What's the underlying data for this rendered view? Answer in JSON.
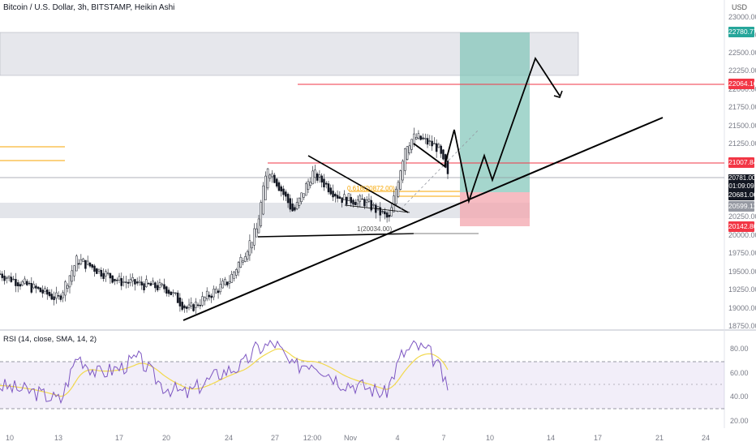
{
  "header": {
    "title": "Bitcoin / U.S. Dollar, 3h, BITSTAMP, Heikin Ashi",
    "currency": "USD"
  },
  "price_axis": {
    "labels": [
      "23000.00",
      "22750.00",
      "22500.00",
      "22250.00",
      "22000.00",
      "21750.00",
      "21500.00",
      "21250.00",
      "20250.00",
      "20000.00",
      "19750.00",
      "19500.00",
      "19250.00",
      "19000.00",
      "18750.00"
    ]
  },
  "price_badges": {
    "target": "22780.77",
    "resistance": "22064.16",
    "level_21007": "21007.84",
    "current_price": "20781.00",
    "countdown": "01:09:09",
    "level_20681": "20681.00",
    "level_20599": "20599.11",
    "stop": "20142.80"
  },
  "annotations": {
    "fib_label": "0.618(20872.00)",
    "pattern_label": "1(20034.00)"
  },
  "rsi": {
    "label": "RSI (14, close, SMA, 14, 2)",
    "axis": [
      "80.00",
      "60.00",
      "40.00",
      "20.00"
    ]
  },
  "time_axis": [
    "10",
    "13",
    "17",
    "20",
    "24",
    "27",
    "12:00",
    "Nov",
    "4",
    "7",
    "10",
    "14",
    "17",
    "21",
    "24"
  ],
  "colors": {
    "candle": "#131722",
    "trendline": "#000000",
    "resistance_line": "#f23645",
    "fib_line": "#f7a600",
    "target_zone": "#7fc4b8",
    "stop_zone": "#f3a6ae",
    "rsi_line": "#7e57c2",
    "rsi_sma": "#f2d94e"
  },
  "chart_data": {
    "type": "candlestick",
    "symbol": "BTCUSD",
    "timeframe": "3h",
    "y_range": [
      18750,
      23000
    ],
    "close_path": [
      {
        "x": "Oct 10",
        "y": 19450
      },
      {
        "x": "Oct 13",
        "y": 19100
      },
      {
        "x": "Oct 14",
        "y": 19650
      },
      {
        "x": "Oct 17",
        "y": 19350
      },
      {
        "x": "Oct 20",
        "y": 19250
      },
      {
        "x": "Oct 21",
        "y": 18950
      },
      {
        "x": "Oct 24",
        "y": 19350
      },
      {
        "x": "Oct 25",
        "y": 20050
      },
      {
        "x": "Oct 26",
        "y": 20950
      },
      {
        "x": "Oct 27",
        "y": 20300
      },
      {
        "x": "Oct 28",
        "y": 20850
      },
      {
        "x": "Oct 30",
        "y": 20500
      },
      {
        "x": "Nov 1",
        "y": 20450
      },
      {
        "x": "Nov 3",
        "y": 20200
      },
      {
        "x": "Nov 4",
        "y": 21250
      },
      {
        "x": "Nov 5",
        "y": 21350
      },
      {
        "x": "Nov 6",
        "y": 21200
      },
      {
        "x": "Nov 7",
        "y": 20781
      }
    ],
    "levels": [
      22780.77,
      22064.16,
      21007.84,
      20681.0,
      20599.11,
      20142.8
    ]
  }
}
